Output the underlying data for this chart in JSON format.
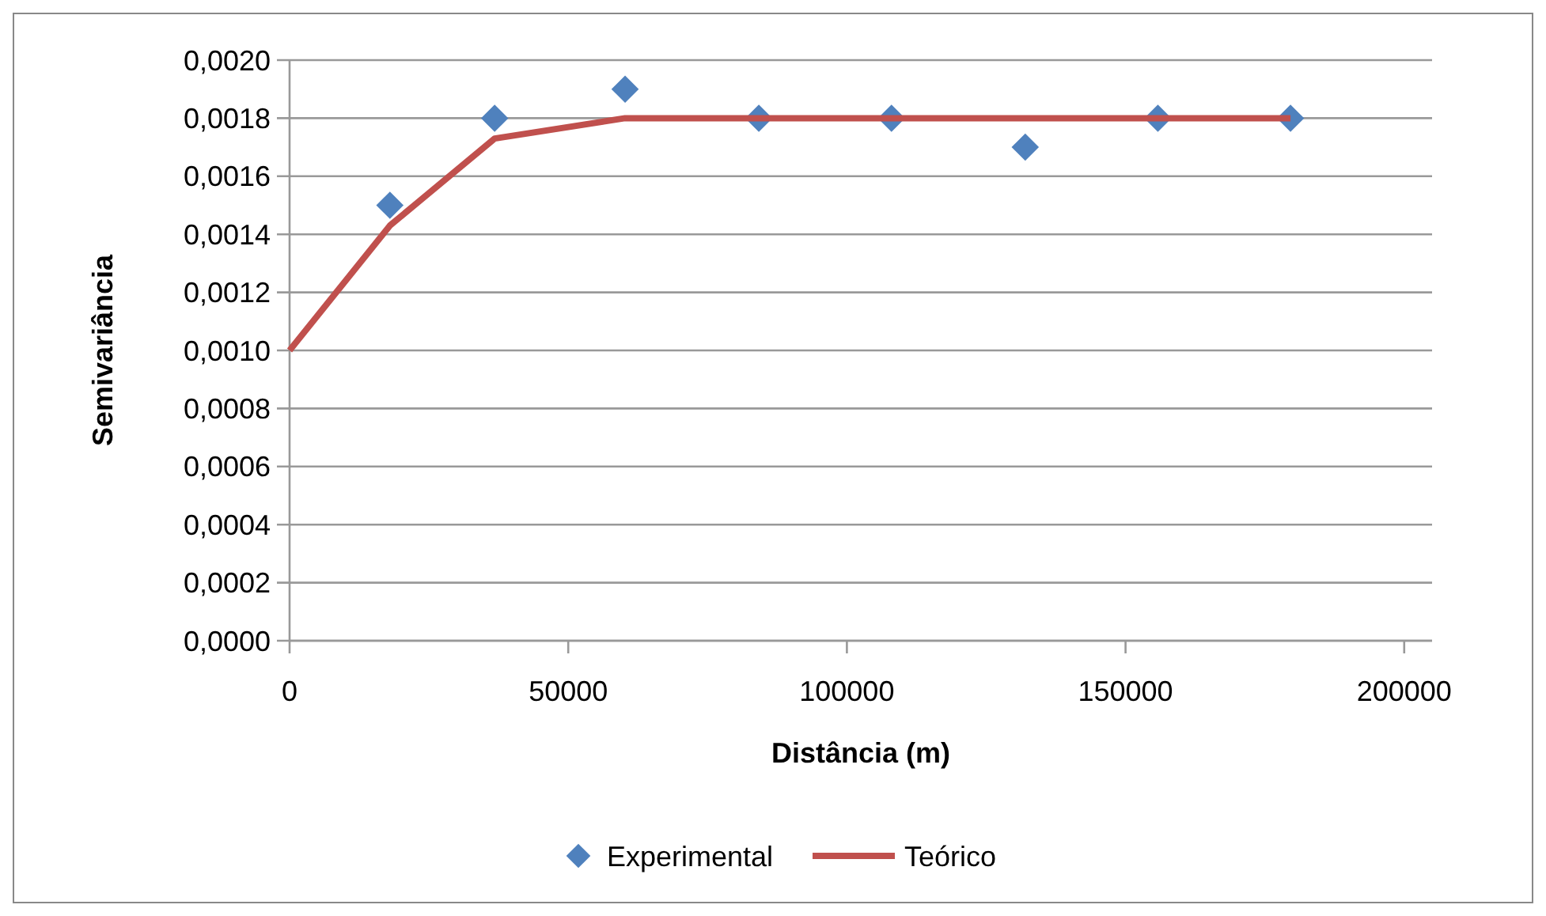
{
  "chart_data": {
    "type": "scatter",
    "xlabel": "Distância (m)",
    "ylabel": "Semivariância",
    "xlim": [
      0,
      205000
    ],
    "xticks": [
      0,
      50000,
      100000,
      150000,
      200000
    ],
    "ylim": [
      0,
      0.002
    ],
    "yticks": [
      {
        "value": 0,
        "label": "0,0000"
      },
      {
        "value": 0.0002,
        "label": "0,0002"
      },
      {
        "value": 0.0004,
        "label": "0,0004"
      },
      {
        "value": 0.0006,
        "label": "0,0006"
      },
      {
        "value": 0.0008,
        "label": "0,0008"
      },
      {
        "value": 0.001,
        "label": "0,0010"
      },
      {
        "value": 0.0012,
        "label": "0,0012"
      },
      {
        "value": 0.0014,
        "label": "0,0014"
      },
      {
        "value": 0.0016,
        "label": "0,0016"
      },
      {
        "value": 0.0018,
        "label": "0,0018"
      },
      {
        "value": 0.002,
        "label": "0,0020"
      }
    ],
    "grid": "y",
    "legend": "bottom",
    "series": [
      {
        "name": "Experimental",
        "marker": "diamond",
        "color": "#4f81bd",
        "x": [
          18000,
          36800,
          60200,
          84200,
          108000,
          132000,
          155800,
          179600
        ],
        "values": [
          0.0015,
          0.0018,
          0.0019,
          0.0018,
          0.0018,
          0.0017,
          0.0018,
          0.0018
        ]
      },
      {
        "name": "Teórico",
        "type": "line",
        "marker": "none",
        "color": "#c0504d",
        "x": [
          0,
          18000,
          36800,
          60200,
          84200,
          108000,
          132000,
          155800,
          179600
        ],
        "values": [
          0.001,
          0.00143,
          0.00173,
          0.0018,
          0.0018,
          0.0018,
          0.0018,
          0.0018,
          0.0018
        ]
      }
    ]
  }
}
